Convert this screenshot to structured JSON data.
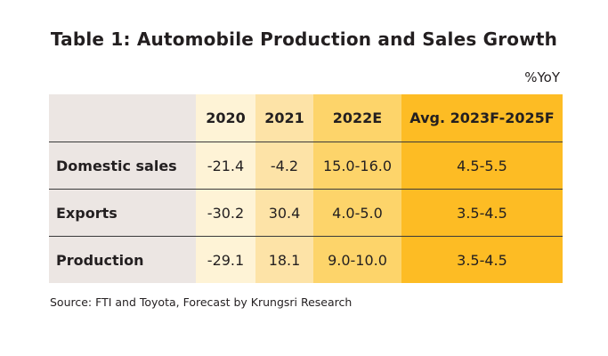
{
  "title": "Table 1: Automobile Production and Sales Growth",
  "unit": "%YoY",
  "table": {
    "headers": [
      "",
      "2020",
      "2021",
      "2022E",
      "Avg. 2023F-2025F"
    ],
    "rows": [
      {
        "label": "Domestic  sales",
        "values": [
          "-21.4",
          "-4.2",
          "15.0-16.0",
          "4.5-5.5"
        ]
      },
      {
        "label": "Exports",
        "values": [
          "-30.2",
          "30.4",
          "4.0-5.0",
          "3.5-4.5"
        ]
      },
      {
        "label": "Production",
        "values": [
          "-29.1",
          "18.1",
          "9.0-10.0",
          "3.5-4.5"
        ]
      }
    ]
  },
  "source": "Source: FTI  and  Toyota, Forecast by  Krungsri Research",
  "colors": {
    "label_bg": "#ece6e3",
    "col_2020": "#fef3d6",
    "col_2021": "#fde3a7",
    "col_2022E": "#fdd46a",
    "col_avg": "#fdbc24"
  }
}
